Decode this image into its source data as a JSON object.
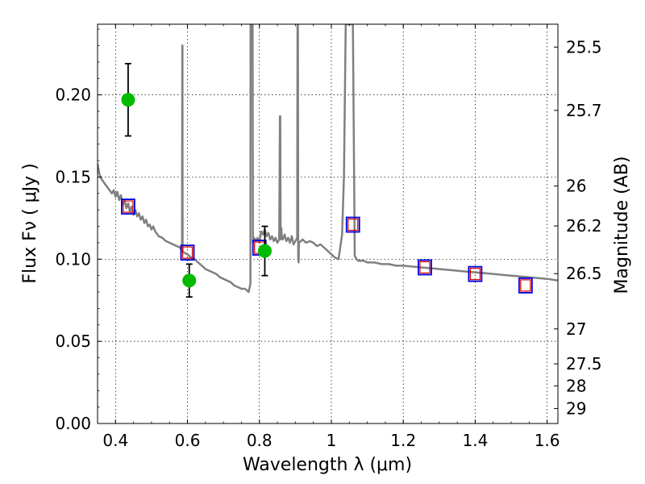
{
  "chart_data": {
    "type": "scatter",
    "title": "",
    "xlabel": "Wavelength  λ (μm)",
    "ylabel": "Flux  Fν  ( μJy )",
    "ylabel_right": "Magnitude (AB)",
    "xlim": [
      0.35,
      1.63
    ],
    "ylim": [
      0,
      0.243
    ],
    "grid": true,
    "x_ticks": [
      0.4,
      0.6,
      0.8,
      1.0,
      1.2,
      1.4,
      1.6
    ],
    "x_tick_labels": [
      "0.4",
      "0.6",
      "0.8",
      "1",
      "1.2",
      "1.4",
      "1.6"
    ],
    "y_ticks": [
      0.0,
      0.05,
      0.1,
      0.15,
      0.2
    ],
    "y_tick_labels": [
      "0.00",
      "0.05",
      "0.10",
      "0.15",
      "0.20"
    ],
    "right_ticks": [
      {
        "label": "25.5",
        "mag": 25.5
      },
      {
        "label": "25.7",
        "mag": 25.7
      },
      {
        "label": "26",
        "mag": 26.0
      },
      {
        "label": "26.2",
        "mag": 26.2
      },
      {
        "label": "26.5",
        "mag": 26.5
      },
      {
        "label": "27",
        "mag": 27.0
      },
      {
        "label": "27.5",
        "mag": 27.5
      },
      {
        "label": "28",
        "mag": 28.0
      },
      {
        "label": "29",
        "mag": 29.0
      }
    ],
    "colors": {
      "model": "#808080",
      "observed": "#00bb00",
      "model_phot_outer": "#0000dd",
      "model_phot_inner": "#dd0000",
      "errorbar": "#000000"
    },
    "series": [
      {
        "kind": "model_spectrum_line",
        "x": [
          0.35,
          0.355,
          0.36,
          0.37,
          0.38,
          0.39,
          0.395,
          0.4,
          0.405,
          0.41,
          0.415,
          0.42,
          0.425,
          0.43,
          0.435,
          0.44,
          0.445,
          0.45,
          0.455,
          0.46,
          0.465,
          0.47,
          0.475,
          0.48,
          0.485,
          0.49,
          0.495,
          0.5,
          0.505,
          0.51,
          0.52,
          0.53,
          0.54,
          0.55,
          0.56,
          0.57,
          0.58,
          0.585,
          0.5855,
          0.586,
          0.5865,
          0.59,
          0.6,
          0.61,
          0.62,
          0.63,
          0.64,
          0.65,
          0.66,
          0.67,
          0.68,
          0.69,
          0.7,
          0.71,
          0.72,
          0.73,
          0.74,
          0.75,
          0.76,
          0.77,
          0.775,
          0.7755,
          0.776,
          0.779,
          0.781,
          0.782,
          0.784,
          0.785,
          0.79,
          0.795,
          0.8,
          0.805,
          0.81,
          0.815,
          0.82,
          0.825,
          0.83,
          0.835,
          0.84,
          0.845,
          0.85,
          0.855,
          0.857,
          0.858,
          0.859,
          0.861,
          0.862,
          0.865,
          0.87,
          0.875,
          0.88,
          0.885,
          0.89,
          0.895,
          0.9,
          0.905,
          0.906,
          0.907,
          0.908,
          0.909,
          0.91,
          0.92,
          0.93,
          0.94,
          0.95,
          0.96,
          0.97,
          0.98,
          0.99,
          1.0,
          1.01,
          1.02,
          1.03,
          1.035,
          1.04,
          1.045,
          1.05,
          1.055,
          1.06,
          1.065,
          1.07,
          1.075,
          1.08,
          1.09,
          1.1,
          1.12,
          1.14,
          1.16,
          1.18,
          1.2,
          1.25,
          1.3,
          1.35,
          1.4,
          1.45,
          1.5,
          1.55,
          1.6,
          1.63
        ],
        "y": [
          0.158,
          0.152,
          0.149,
          0.146,
          0.143,
          0.14,
          0.142,
          0.138,
          0.141,
          0.136,
          0.139,
          0.133,
          0.136,
          0.131,
          0.134,
          0.129,
          0.132,
          0.127,
          0.13,
          0.126,
          0.128,
          0.124,
          0.126,
          0.122,
          0.124,
          0.12,
          0.121,
          0.118,
          0.12,
          0.117,
          0.114,
          0.113,
          0.111,
          0.11,
          0.109,
          0.108,
          0.107,
          0.105,
          0.23,
          0.23,
          0.105,
          0.104,
          0.103,
          0.101,
          0.1,
          0.098,
          0.096,
          0.094,
          0.093,
          0.092,
          0.091,
          0.089,
          0.088,
          0.087,
          0.086,
          0.084,
          0.083,
          0.082,
          0.082,
          0.08,
          0.085,
          0.243,
          0.243,
          0.243,
          0.243,
          0.11,
          0.112,
          0.113,
          0.111,
          0.113,
          0.11,
          0.117,
          0.115,
          0.118,
          0.114,
          0.116,
          0.112,
          0.114,
          0.111,
          0.113,
          0.11,
          0.112,
          0.187,
          0.187,
          0.112,
          0.119,
          0.114,
          0.112,
          0.115,
          0.111,
          0.113,
          0.11,
          0.114,
          0.109,
          0.111,
          0.113,
          0.243,
          0.243,
          0.1,
          0.098,
          0.11,
          0.112,
          0.11,
          0.111,
          0.11,
          0.108,
          0.109,
          0.107,
          0.105,
          0.103,
          0.101,
          0.1,
          0.115,
          0.15,
          0.243,
          0.243,
          0.243,
          0.243,
          0.243,
          0.102,
          0.1,
          0.099,
          0.099,
          0.099,
          0.098,
          0.098,
          0.097,
          0.097,
          0.096,
          0.096,
          0.095,
          0.094,
          0.093,
          0.092,
          0.091,
          0.09,
          0.089,
          0.088,
          0.087
        ]
      },
      {
        "kind": "observed_flux_points",
        "x": [
          0.435,
          0.605,
          0.815
        ],
        "y": [
          0.197,
          0.087,
          0.105
        ],
        "yerr": [
          0.022,
          0.01,
          0.015
        ]
      },
      {
        "kind": "model_photometry_squares",
        "x": [
          0.435,
          0.6,
          0.8,
          1.06,
          1.26,
          1.4,
          1.54
        ],
        "y": [
          0.132,
          0.104,
          0.107,
          0.121,
          0.095,
          0.091,
          0.084
        ]
      }
    ]
  }
}
